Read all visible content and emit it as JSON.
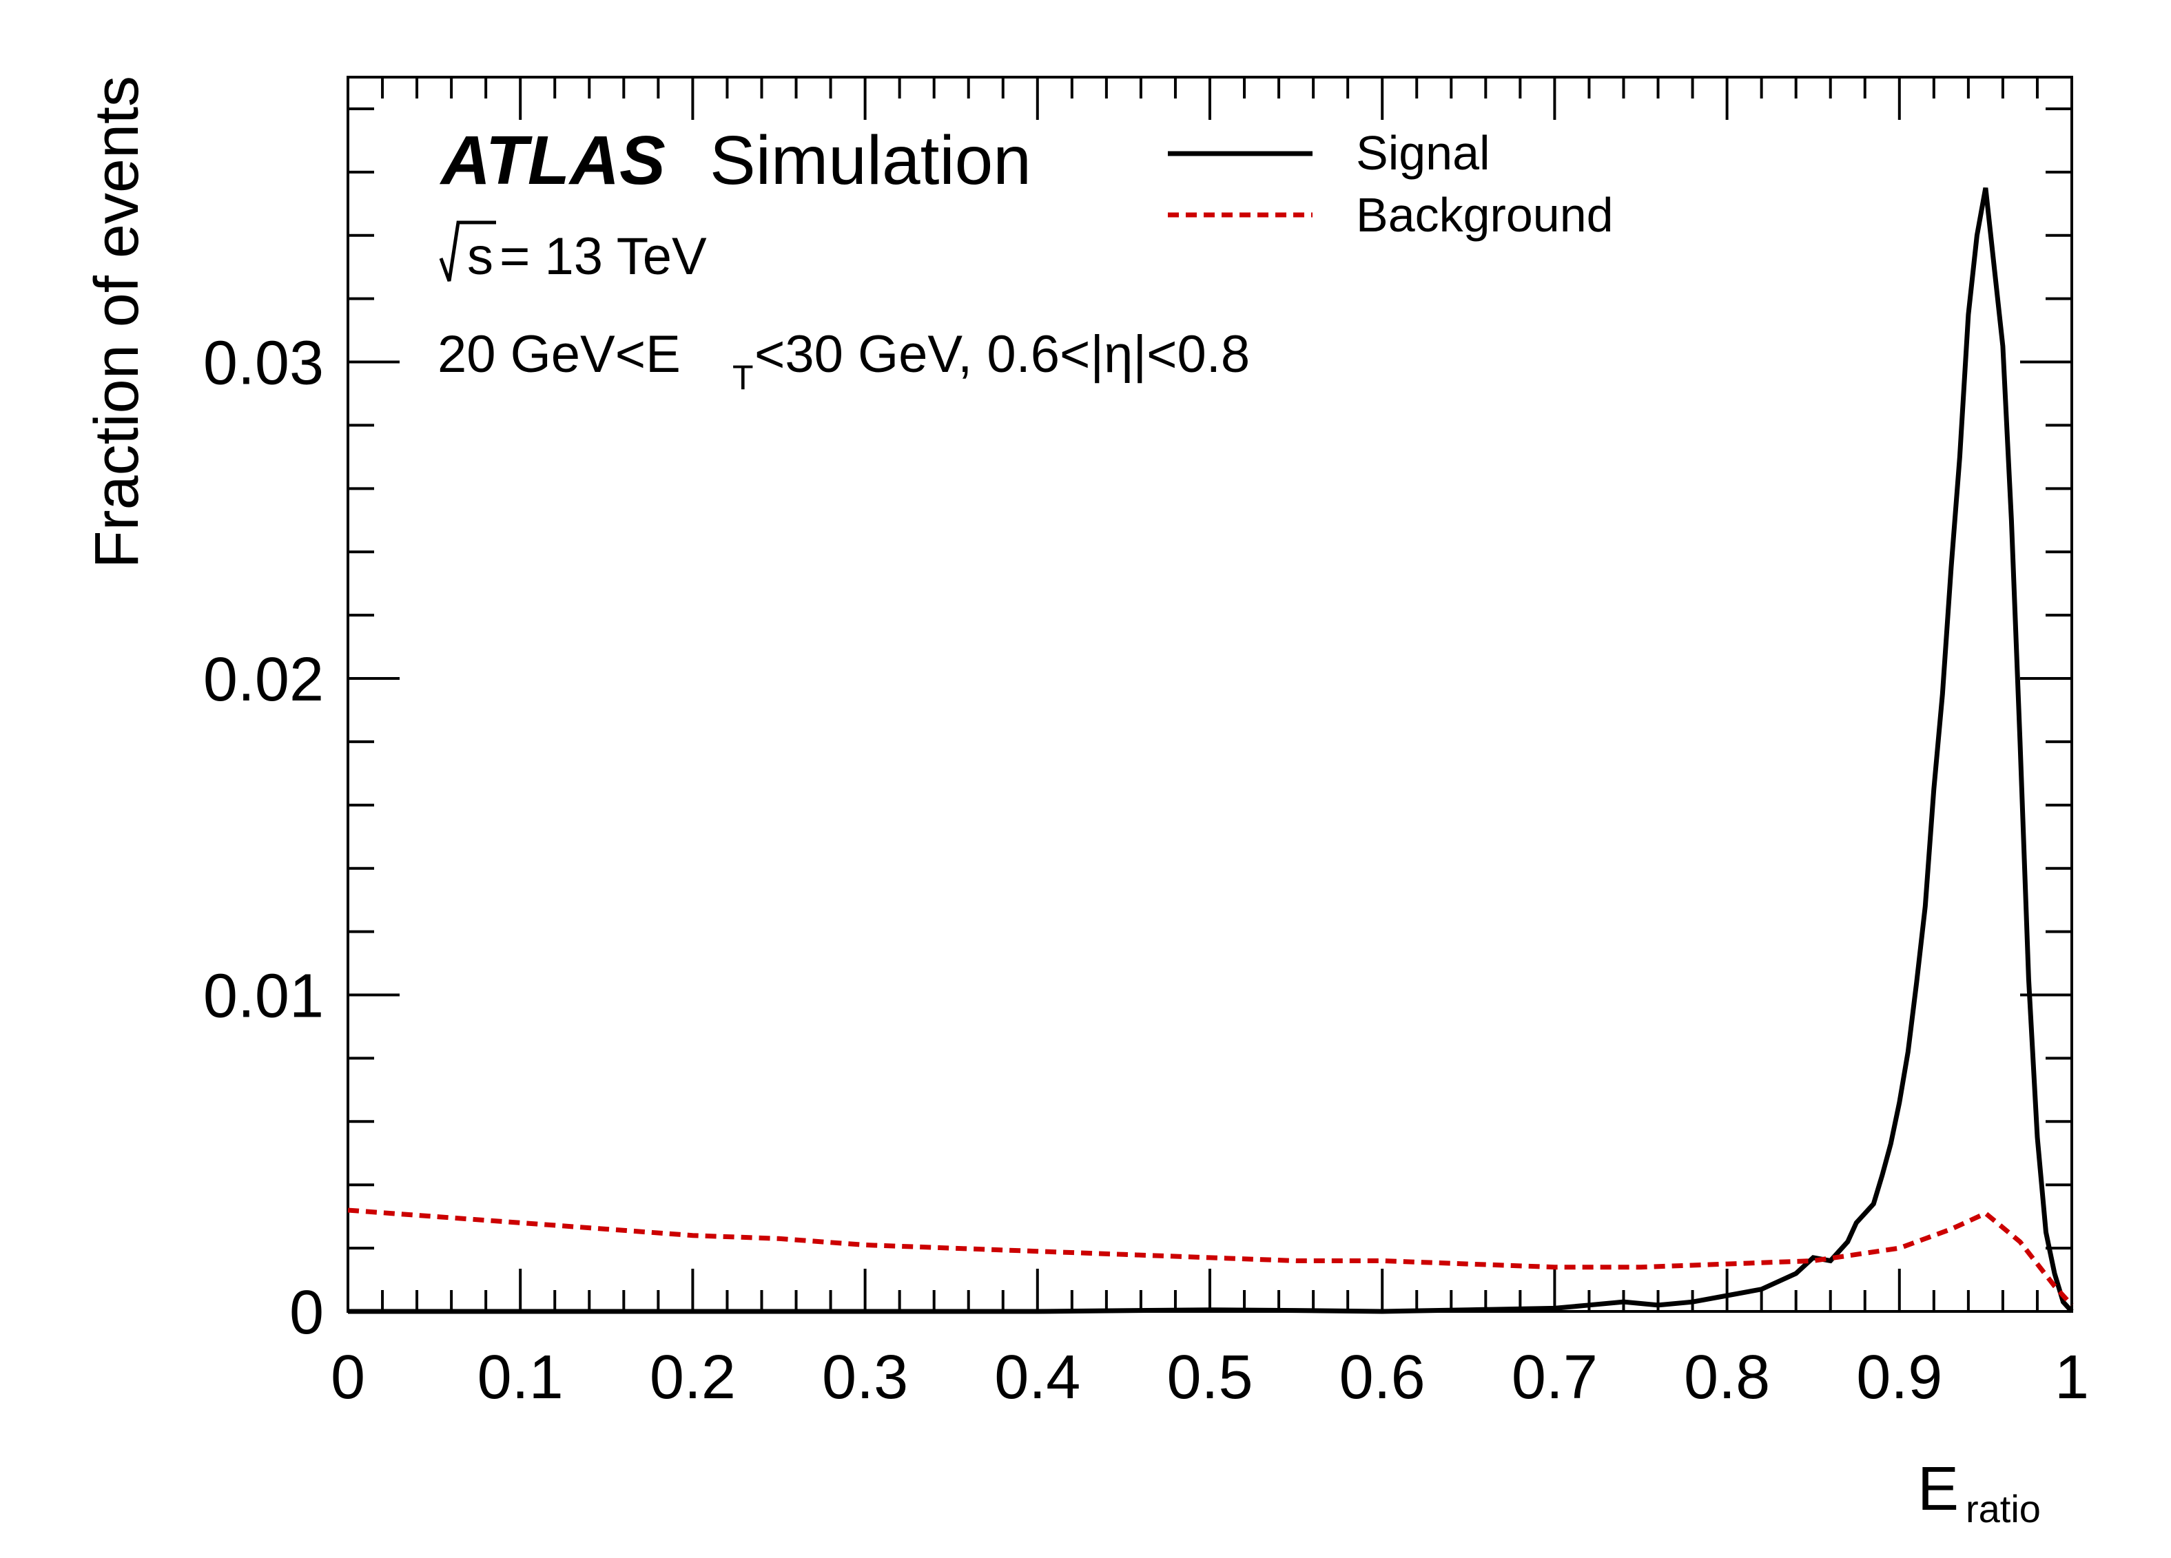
{
  "chart_data": {
    "type": "line",
    "xlabel": "E",
    "xlabel_sub": "ratio",
    "ylabel": "Fraction of events",
    "xlim": [
      0,
      1
    ],
    "ylim": [
      0,
      0.039
    ],
    "x_ticks": [
      "0",
      "0.1",
      "0.2",
      "0.3",
      "0.4",
      "0.5",
      "0.6",
      "0.7",
      "0.8",
      "0.9",
      "1"
    ],
    "x_tick_values": [
      0,
      0.1,
      0.2,
      0.3,
      0.4,
      0.5,
      0.6,
      0.7,
      0.8,
      0.9,
      1.0
    ],
    "y_ticks": [
      "0",
      "0.01",
      "0.02",
      "0.03"
    ],
    "y_tick_values": [
      0,
      0.01,
      0.02,
      0.03
    ],
    "grid": false,
    "legend_position": "top-center",
    "annotations": {
      "experiment": "ATLAS",
      "label": "Simulation",
      "energy_prefix": "s",
      "energy_suffix": " = 13 TeV",
      "cut_part1": "20 GeV<E",
      "cut_sub": "T",
      "cut_part2": "<30 GeV, 0.6<|η|<0.8"
    },
    "series": [
      {
        "name": "Signal",
        "color": "#000000",
        "style": "solid",
        "x": [
          0.0,
          0.1,
          0.2,
          0.3,
          0.4,
          0.5,
          0.55,
          0.6,
          0.65,
          0.7,
          0.72,
          0.74,
          0.76,
          0.78,
          0.8,
          0.82,
          0.84,
          0.85,
          0.86,
          0.87,
          0.875,
          0.88,
          0.885,
          0.89,
          0.895,
          0.9,
          0.905,
          0.91,
          0.915,
          0.92,
          0.925,
          0.93,
          0.935,
          0.94,
          0.945,
          0.95,
          0.955,
          0.96,
          0.965,
          0.97,
          0.975,
          0.98,
          0.985,
          0.99,
          0.995,
          1.0
        ],
        "y": [
          0.0,
          0.0,
          0.0,
          0.0,
          0.0,
          5e-05,
          3e-05,
          0.0,
          5e-05,
          0.0001,
          0.0002,
          0.0003,
          0.0002,
          0.0003,
          0.0005,
          0.0007,
          0.0012,
          0.0017,
          0.0016,
          0.0022,
          0.0028,
          0.0031,
          0.0034,
          0.0043,
          0.0053,
          0.0066,
          0.0082,
          0.0104,
          0.0128,
          0.0165,
          0.0195,
          0.0235,
          0.027,
          0.0315,
          0.034,
          0.0355,
          0.033,
          0.0305,
          0.025,
          0.018,
          0.0105,
          0.0055,
          0.0025,
          0.0012,
          0.0003,
          0.0
        ]
      },
      {
        "name": "Background",
        "color": "#cc0000",
        "style": "dashed",
        "x": [
          0.0,
          0.025,
          0.05,
          0.1,
          0.15,
          0.2,
          0.25,
          0.3,
          0.35,
          0.4,
          0.45,
          0.5,
          0.55,
          0.6,
          0.65,
          0.7,
          0.75,
          0.8,
          0.85,
          0.9,
          0.93,
          0.95,
          0.97,
          0.99,
          1.0
        ],
        "y": [
          0.0032,
          0.0031,
          0.003,
          0.0028,
          0.0026,
          0.0024,
          0.0023,
          0.0021,
          0.002,
          0.0019,
          0.0018,
          0.0017,
          0.0016,
          0.0016,
          0.0015,
          0.0014,
          0.0014,
          0.0015,
          0.0016,
          0.002,
          0.0026,
          0.0031,
          0.0022,
          0.0008,
          0.0002
        ]
      }
    ]
  }
}
